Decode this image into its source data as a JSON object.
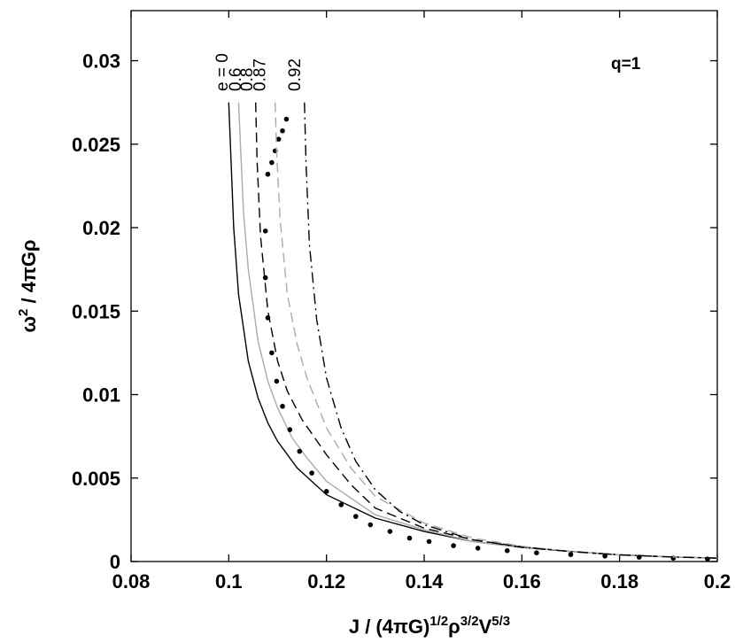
{
  "chart_data": {
    "type": "line",
    "xlabel_parts": [
      "J / ",
      "(4πG)",
      "1/2",
      "ρ",
      "3/2",
      "V",
      "5/3"
    ],
    "ylabel_parts": [
      "ω",
      "2",
      " / 4πGρ"
    ],
    "annotation": "q=1",
    "xlim": [
      0.08,
      0.2
    ],
    "ylim": [
      0,
      0.033
    ],
    "x_ticks": [
      0.08,
      0.1,
      0.12,
      0.14,
      0.16,
      0.18,
      0.2
    ],
    "x_tick_labels": [
      "0.08",
      "0.1",
      "0.12",
      "0.14",
      "0.16",
      "0.18",
      "0.2"
    ],
    "y_ticks": [
      0,
      0.005,
      0.01,
      0.015,
      0.02,
      0.025,
      0.03
    ],
    "y_tick_labels": [
      "0",
      "0.005",
      "0.01",
      "0.015",
      "0.02",
      "0.025",
      "0.03"
    ],
    "grid": false,
    "legend": "none",
    "series": [
      {
        "name": "e = 0",
        "label_x": 0.0998,
        "style": "solid",
        "color": "#000000",
        "x": [
          0.1,
          0.101,
          0.102,
          0.104,
          0.106,
          0.108,
          0.11,
          0.114,
          0.12,
          0.13,
          0.14,
          0.15,
          0.16,
          0.17,
          0.18,
          0.19,
          0.2
        ],
        "y": [
          0.0275,
          0.02,
          0.016,
          0.012,
          0.0098,
          0.0083,
          0.0072,
          0.0056,
          0.004,
          0.0026,
          0.0018,
          0.0012,
          0.00085,
          0.0006,
          0.0004,
          0.00028,
          0.0002
        ]
      },
      {
        "name": "0.6",
        "label_x": 0.1025,
        "style": "solid",
        "color": "#aaaaaa",
        "x": [
          0.102,
          0.103,
          0.104,
          0.106,
          0.108,
          0.11,
          0.113,
          0.116,
          0.12,
          0.13,
          0.14,
          0.15,
          0.16,
          0.17,
          0.18,
          0.19,
          0.2
        ],
        "y": [
          0.0275,
          0.021,
          0.0175,
          0.0132,
          0.0108,
          0.0092,
          0.0074,
          0.0062,
          0.0048,
          0.0028,
          0.0019,
          0.0012,
          0.00085,
          0.0006,
          0.0004,
          0.00028,
          0.0002
        ]
      },
      {
        "name": "0.8",
        "label_x": 0.1048,
        "style": "dashed",
        "color": "#000000",
        "x": [
          0.1055,
          0.1058,
          0.1065,
          0.108,
          0.11,
          0.112,
          0.115,
          0.12,
          0.125,
          0.13,
          0.14,
          0.15,
          0.16,
          0.17,
          0.18,
          0.19,
          0.2
        ],
        "y": [
          0.0275,
          0.024,
          0.0195,
          0.015,
          0.012,
          0.0102,
          0.0085,
          0.0064,
          0.0046,
          0.0032,
          0.002,
          0.0013,
          0.00088,
          0.0006,
          0.0004,
          0.00028,
          0.0002
        ]
      },
      {
        "name": "0.87",
        "label_x": 0.1075,
        "style": "dotted",
        "color": "#000000",
        "x": [
          0.1118,
          0.111,
          0.1102,
          0.1095,
          0.1088,
          0.108,
          0.1075,
          0.1075,
          0.108,
          0.1088,
          0.1098,
          0.111,
          0.1125,
          0.1145,
          0.117,
          0.12,
          0.123,
          0.126,
          0.129,
          0.133,
          0.137,
          0.141,
          0.146,
          0.151,
          0.157,
          0.163,
          0.17,
          0.177,
          0.184,
          0.191,
          0.198
        ],
        "y": [
          0.0265,
          0.0258,
          0.0253,
          0.0246,
          0.0239,
          0.0232,
          0.0198,
          0.017,
          0.0146,
          0.0125,
          0.0108,
          0.0093,
          0.0079,
          0.0066,
          0.0053,
          0.0042,
          0.0034,
          0.0027,
          0.0022,
          0.0018,
          0.0014,
          0.0012,
          0.00095,
          0.0008,
          0.00065,
          0.00052,
          0.00042,
          0.00033,
          0.00026,
          0.0002,
          0.00015
        ]
      },
      {
        "name": "0.92",
        "label_x": 0.1146,
        "style": "dashed",
        "color": "#aaaaaa",
        "x": [
          0.1095,
          0.1098,
          0.1105,
          0.112,
          0.114,
          0.116,
          0.12,
          0.125,
          0.13,
          0.14,
          0.15,
          0.16,
          0.17,
          0.18,
          0.19,
          0.2
        ],
        "y": [
          0.0275,
          0.0245,
          0.0205,
          0.016,
          0.013,
          0.011,
          0.008,
          0.0056,
          0.0039,
          0.0023,
          0.0014,
          0.00092,
          0.0006,
          0.0004,
          0.00028,
          0.0002
        ]
      },
      {
        "name": "",
        "style": "dashdot",
        "color": "#000000",
        "x": [
          0.1155,
          0.1158,
          0.1165,
          0.118,
          0.12,
          0.123,
          0.126,
          0.13,
          0.135,
          0.14,
          0.15,
          0.16,
          0.17,
          0.18,
          0.19,
          0.2
        ],
        "y": [
          0.0275,
          0.024,
          0.019,
          0.0145,
          0.011,
          0.008,
          0.006,
          0.0043,
          0.003,
          0.0022,
          0.0013,
          0.00085,
          0.0006,
          0.0004,
          0.00028,
          0.0002
        ]
      }
    ]
  }
}
